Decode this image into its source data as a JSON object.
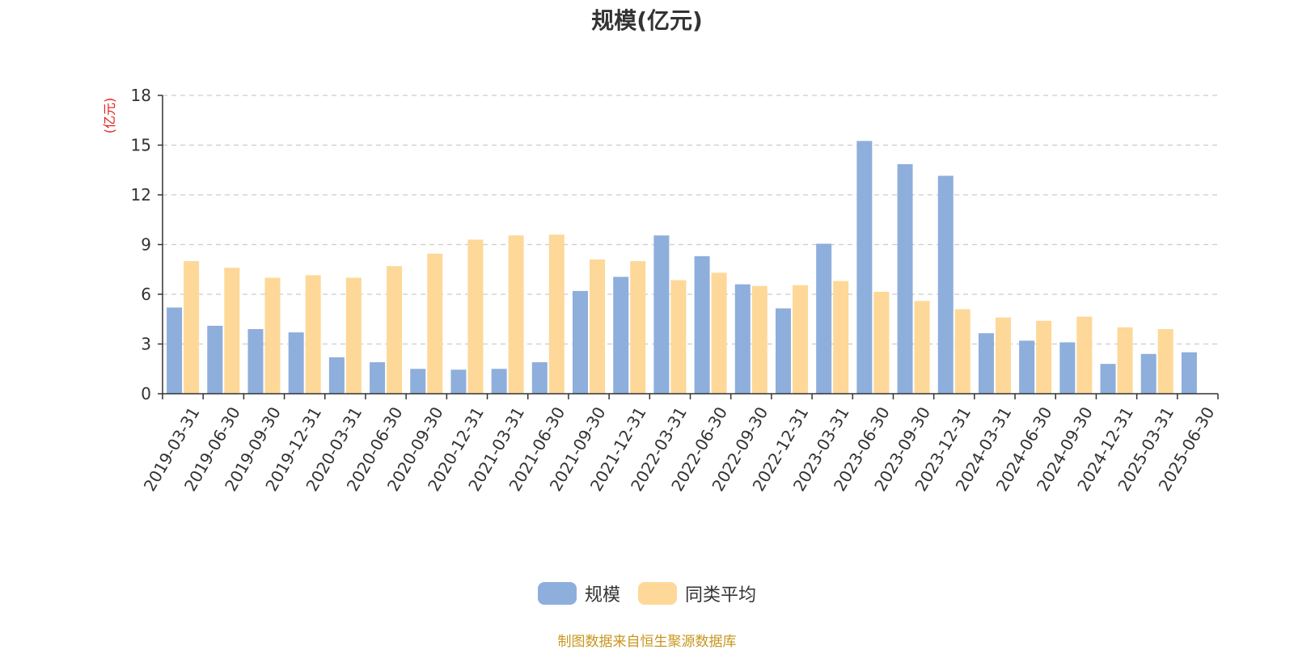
{
  "title": "规模(亿元)",
  "source": "制图数据来自恒生聚源数据库",
  "colors": {
    "series_0": "#8eaedc",
    "series_1": "#fdd898",
    "axis": "#333333",
    "grid": "#cccccc",
    "unit_label": "#e0201d",
    "text": "#333333"
  },
  "chart_data": {
    "type": "bar",
    "title": "规模(亿元)",
    "ylabel": "(亿元)",
    "xlabel": "",
    "ylim": [
      0,
      18
    ],
    "yticks": [
      0,
      3,
      6,
      9,
      12,
      15,
      18
    ],
    "grid": true,
    "legend_position": "bottom",
    "categories": [
      "2019-03-31",
      "2019-06-30",
      "2019-09-30",
      "2019-12-31",
      "2020-03-31",
      "2020-06-30",
      "2020-09-30",
      "2020-12-31",
      "2021-03-31",
      "2021-06-30",
      "2021-09-30",
      "2021-12-31",
      "2022-03-31",
      "2022-06-30",
      "2022-09-30",
      "2022-12-31",
      "2023-03-31",
      "2023-06-30",
      "2023-09-30",
      "2023-12-31",
      "2024-03-31",
      "2024-06-30",
      "2024-09-30",
      "2024-12-31",
      "2025-03-31",
      "2025-06-30"
    ],
    "series": [
      {
        "name": "规模",
        "values": [
          5.2,
          4.1,
          3.9,
          3.7,
          2.2,
          1.9,
          1.5,
          1.45,
          1.5,
          1.9,
          6.2,
          7.05,
          9.55,
          8.3,
          6.6,
          5.15,
          9.05,
          15.25,
          13.85,
          13.15,
          3.65,
          3.2,
          3.1,
          1.8,
          2.4,
          2.5
        ]
      },
      {
        "name": "同类平均",
        "values": [
          8.0,
          7.6,
          7.0,
          7.15,
          7.0,
          7.7,
          8.45,
          9.3,
          9.55,
          9.6,
          8.1,
          8.0,
          6.85,
          7.3,
          6.5,
          6.55,
          6.8,
          6.15,
          5.6,
          5.1,
          4.6,
          4.4,
          4.65,
          4.0,
          3.9,
          null
        ]
      }
    ]
  }
}
